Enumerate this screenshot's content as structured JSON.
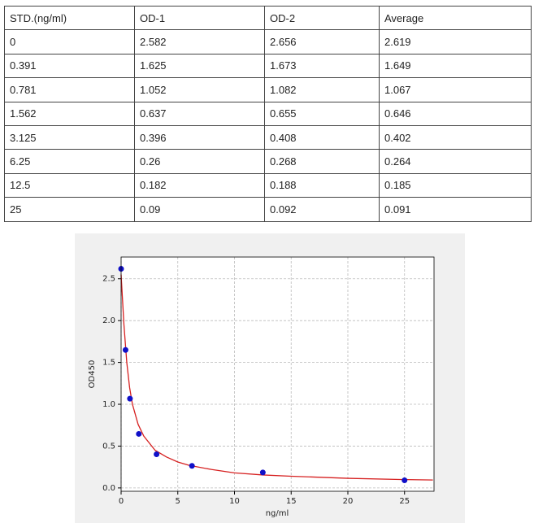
{
  "table": {
    "header": [
      "STD.(ng/ml)",
      "OD-1",
      "OD-2",
      "Average"
    ],
    "rows": [
      [
        "0",
        "2.582",
        "2.656",
        "2.619"
      ],
      [
        "0.391",
        "1.625",
        "1.673",
        "1.649"
      ],
      [
        "0.781",
        "1.052",
        "1.082",
        "1.067"
      ],
      [
        "1.562",
        "0.637",
        "0.655",
        "0.646"
      ],
      [
        "3.125",
        "0.396",
        "0.408",
        "0.402"
      ],
      [
        "6.25",
        "0.26",
        "0.268",
        "0.264"
      ],
      [
        "12.5",
        "0.182",
        "0.188",
        "0.185"
      ],
      [
        "25",
        "0.09",
        "0.092",
        "0.091"
      ]
    ]
  },
  "chart_data": {
    "type": "scatter",
    "x_label": "ng/ml",
    "y_label": "OD450",
    "xlim": [
      0,
      27.6
    ],
    "ylim": [
      -0.04,
      2.76
    ],
    "xticks": [
      0,
      5,
      10,
      15,
      20,
      25
    ],
    "yticks": [
      {
        "value": 0,
        "label": "0.0"
      },
      {
        "value": 0.5,
        "label": "0.5"
      },
      {
        "value": 1,
        "label": "1.0"
      },
      {
        "value": 1.5,
        "label": "1.5"
      },
      {
        "value": 2,
        "label": "2.0"
      },
      {
        "value": 2.5,
        "label": "2.5"
      }
    ],
    "grid": true,
    "series": [
      {
        "type": "line",
        "color": "#d62020",
        "x": [
          0,
          0.25,
          0.5,
          0.75,
          1,
          1.5,
          2,
          3,
          4,
          5,
          6,
          8,
          10,
          12.5,
          15,
          20,
          25,
          27.5
        ],
        "values": [
          2.55,
          1.95,
          1.5,
          1.2,
          1.0,
          0.76,
          0.62,
          0.45,
          0.37,
          0.31,
          0.27,
          0.22,
          0.18,
          0.155,
          0.14,
          0.115,
          0.1,
          0.095
        ]
      },
      {
        "type": "scatter",
        "color": "#1010c8",
        "x": [
          0,
          0.391,
          0.781,
          1.562,
          3.125,
          6.25,
          12.5,
          25
        ],
        "values": [
          2.619,
          1.649,
          1.067,
          0.646,
          0.402,
          0.264,
          0.185,
          0.091
        ]
      }
    ]
  }
}
